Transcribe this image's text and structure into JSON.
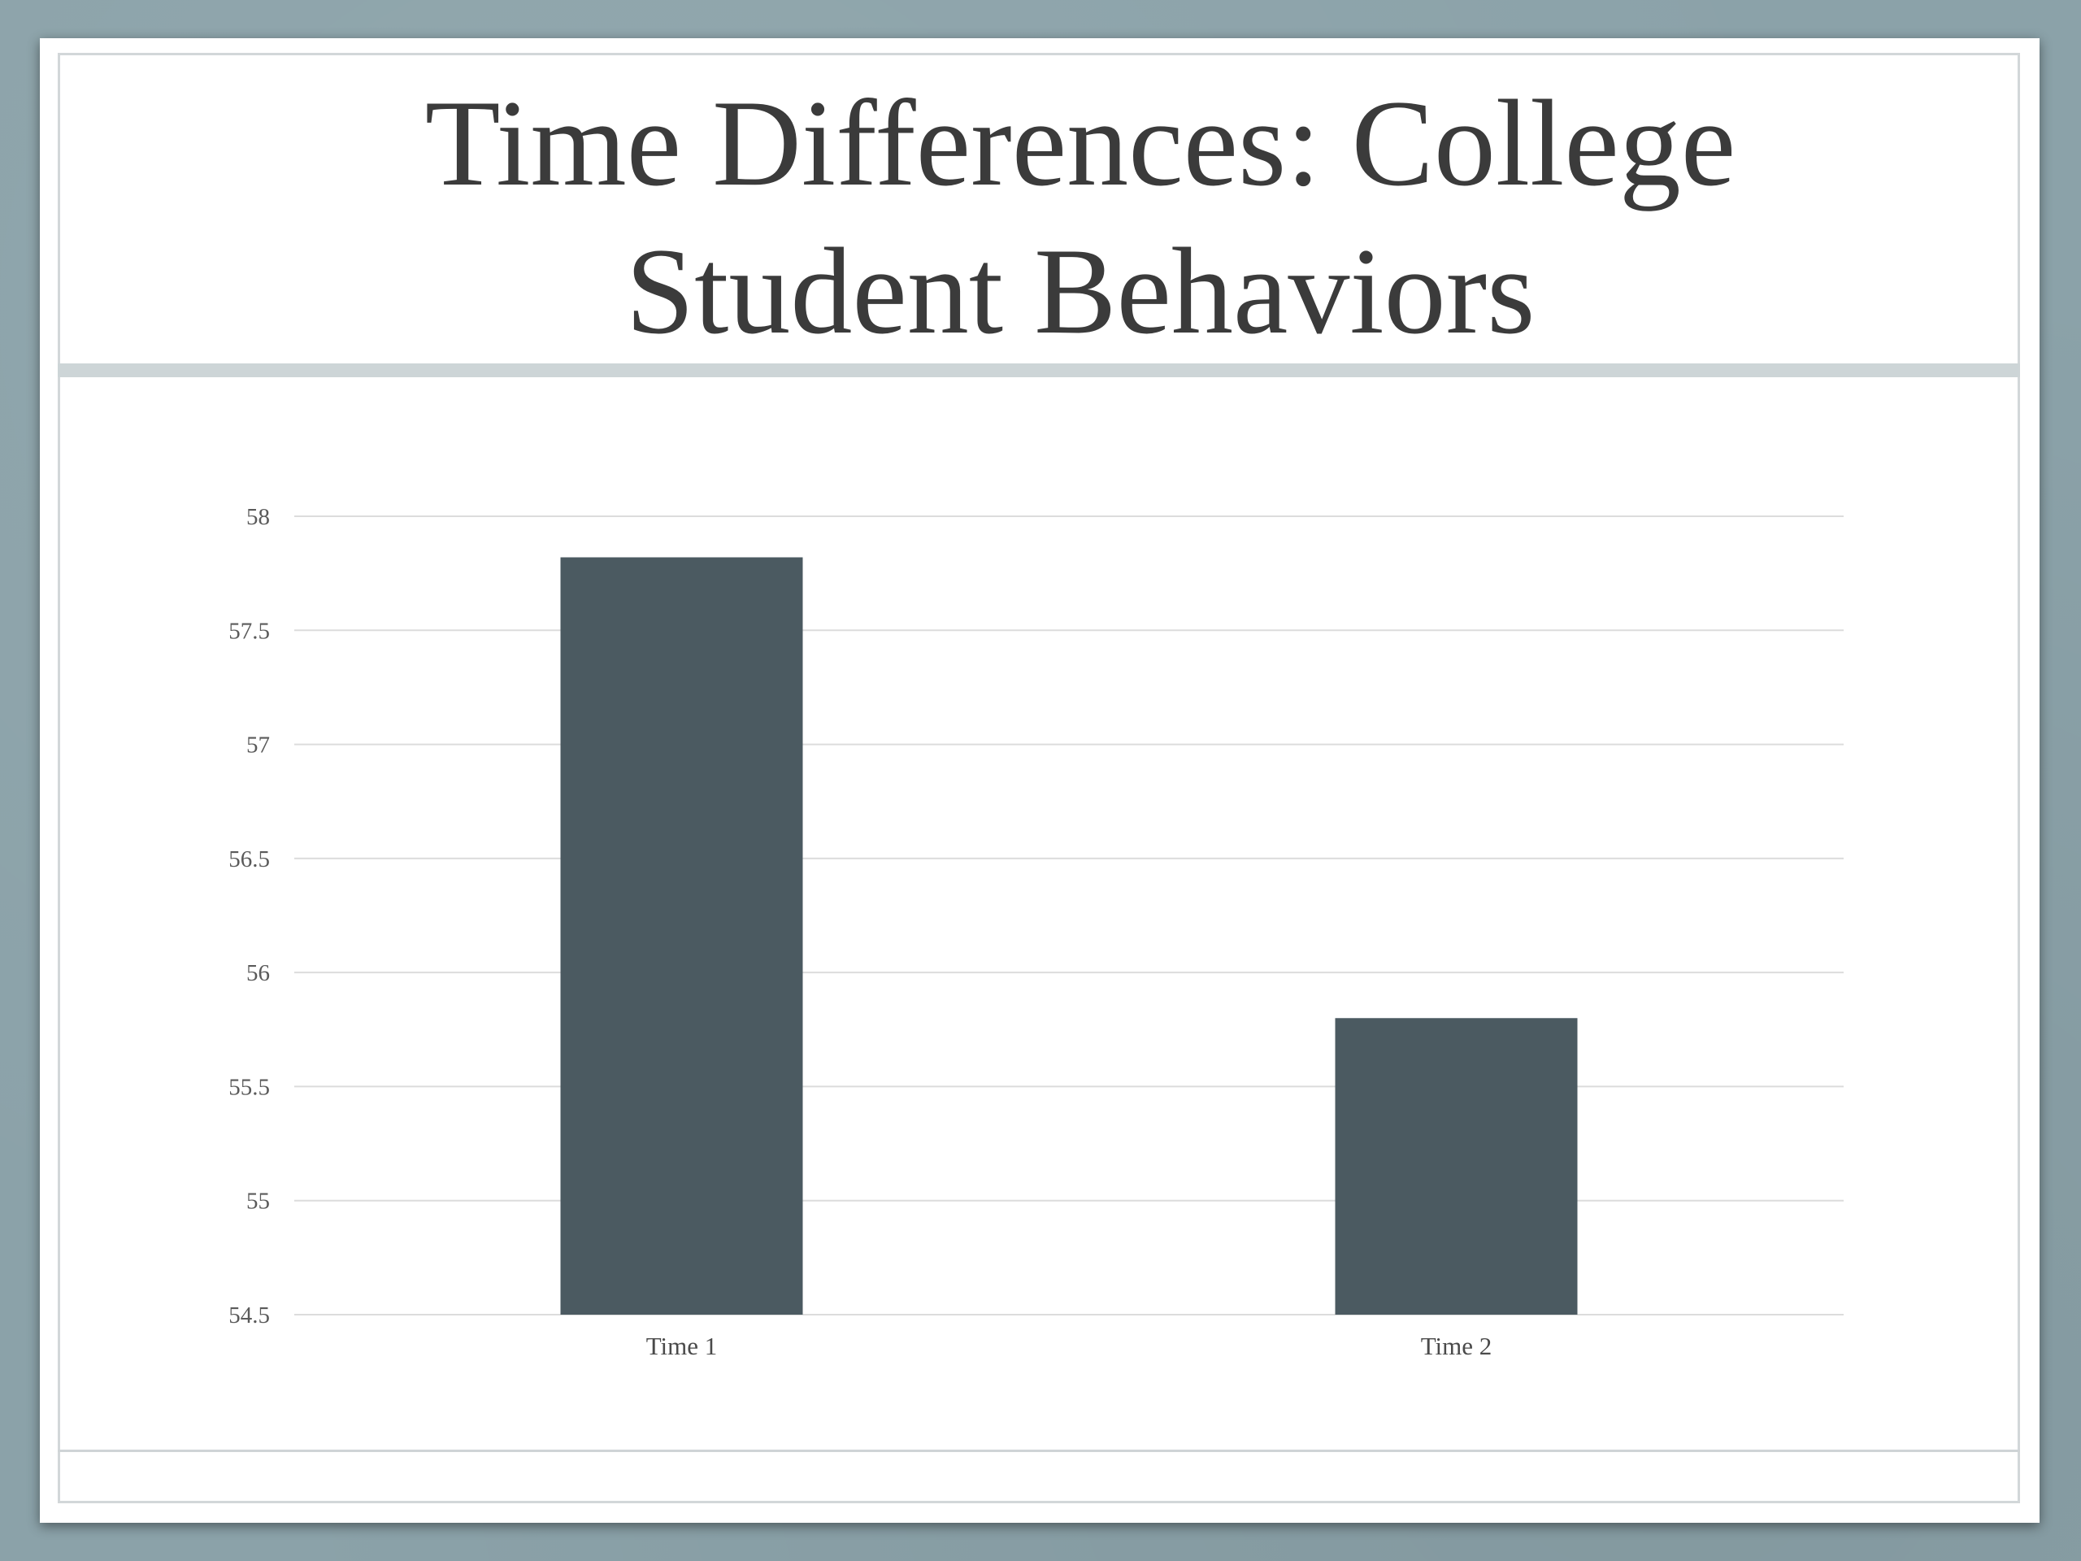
{
  "slide": {
    "title_lines": [
      "Time Differences: College",
      "Student Behaviors"
    ]
  },
  "chart_data": {
    "type": "bar",
    "categories": [
      "Time 1",
      "Time 2"
    ],
    "values": [
      57.82,
      55.8
    ],
    "title": "",
    "xlabel": "",
    "ylabel": "",
    "ylim": [
      54.5,
      58
    ],
    "yticks": [
      "54.5",
      "55",
      "55.5",
      "56",
      "56.5",
      "57",
      "57.5",
      "58"
    ],
    "grid": true,
    "legend": "none",
    "bar_color": "#4b5a61",
    "grid_color": "#dcdcdc"
  },
  "colors": {
    "backdrop": "#8ba2a9",
    "slide": "#ffffff",
    "title_text": "#3b3b3b",
    "rule": "#cdd5d7"
  }
}
